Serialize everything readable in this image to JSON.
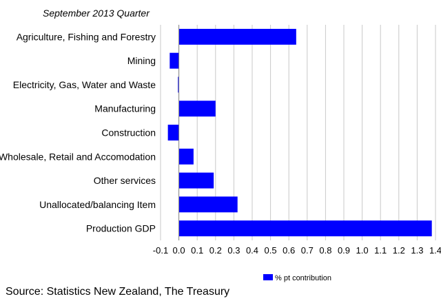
{
  "chart_data": {
    "type": "bar",
    "orientation": "horizontal",
    "subtitle": "September 2013 Quarter",
    "categories": [
      "Agriculture, Fishing and Forestry",
      "Mining",
      "Electricity, Gas, Water and Waste",
      "Manufacturing",
      "Construction",
      "Wholesale, Retail and Accomodation",
      "Other services",
      "Unallocated/balancing Item",
      "Production GDP"
    ],
    "series": [
      {
        "name": "% pt contribution",
        "color": "#0000ff",
        "values": [
          0.64,
          -0.05,
          -0.005,
          0.2,
          -0.06,
          0.08,
          0.19,
          0.32,
          1.38
        ]
      }
    ],
    "xlim": [
      -0.1,
      1.4
    ],
    "x_ticks": [
      "-0.1",
      "0.0",
      "0.1",
      "0.2",
      "0.3",
      "0.4",
      "0.5",
      "0.6",
      "0.7",
      "0.8",
      "0.9",
      "1.0",
      "1.1",
      "1.2",
      "1.3",
      "1.4"
    ],
    "grid": "vertical",
    "legend_position": "bottom-center"
  },
  "footer": {
    "source": "Source: Statistics New Zealand, The Treasury"
  }
}
